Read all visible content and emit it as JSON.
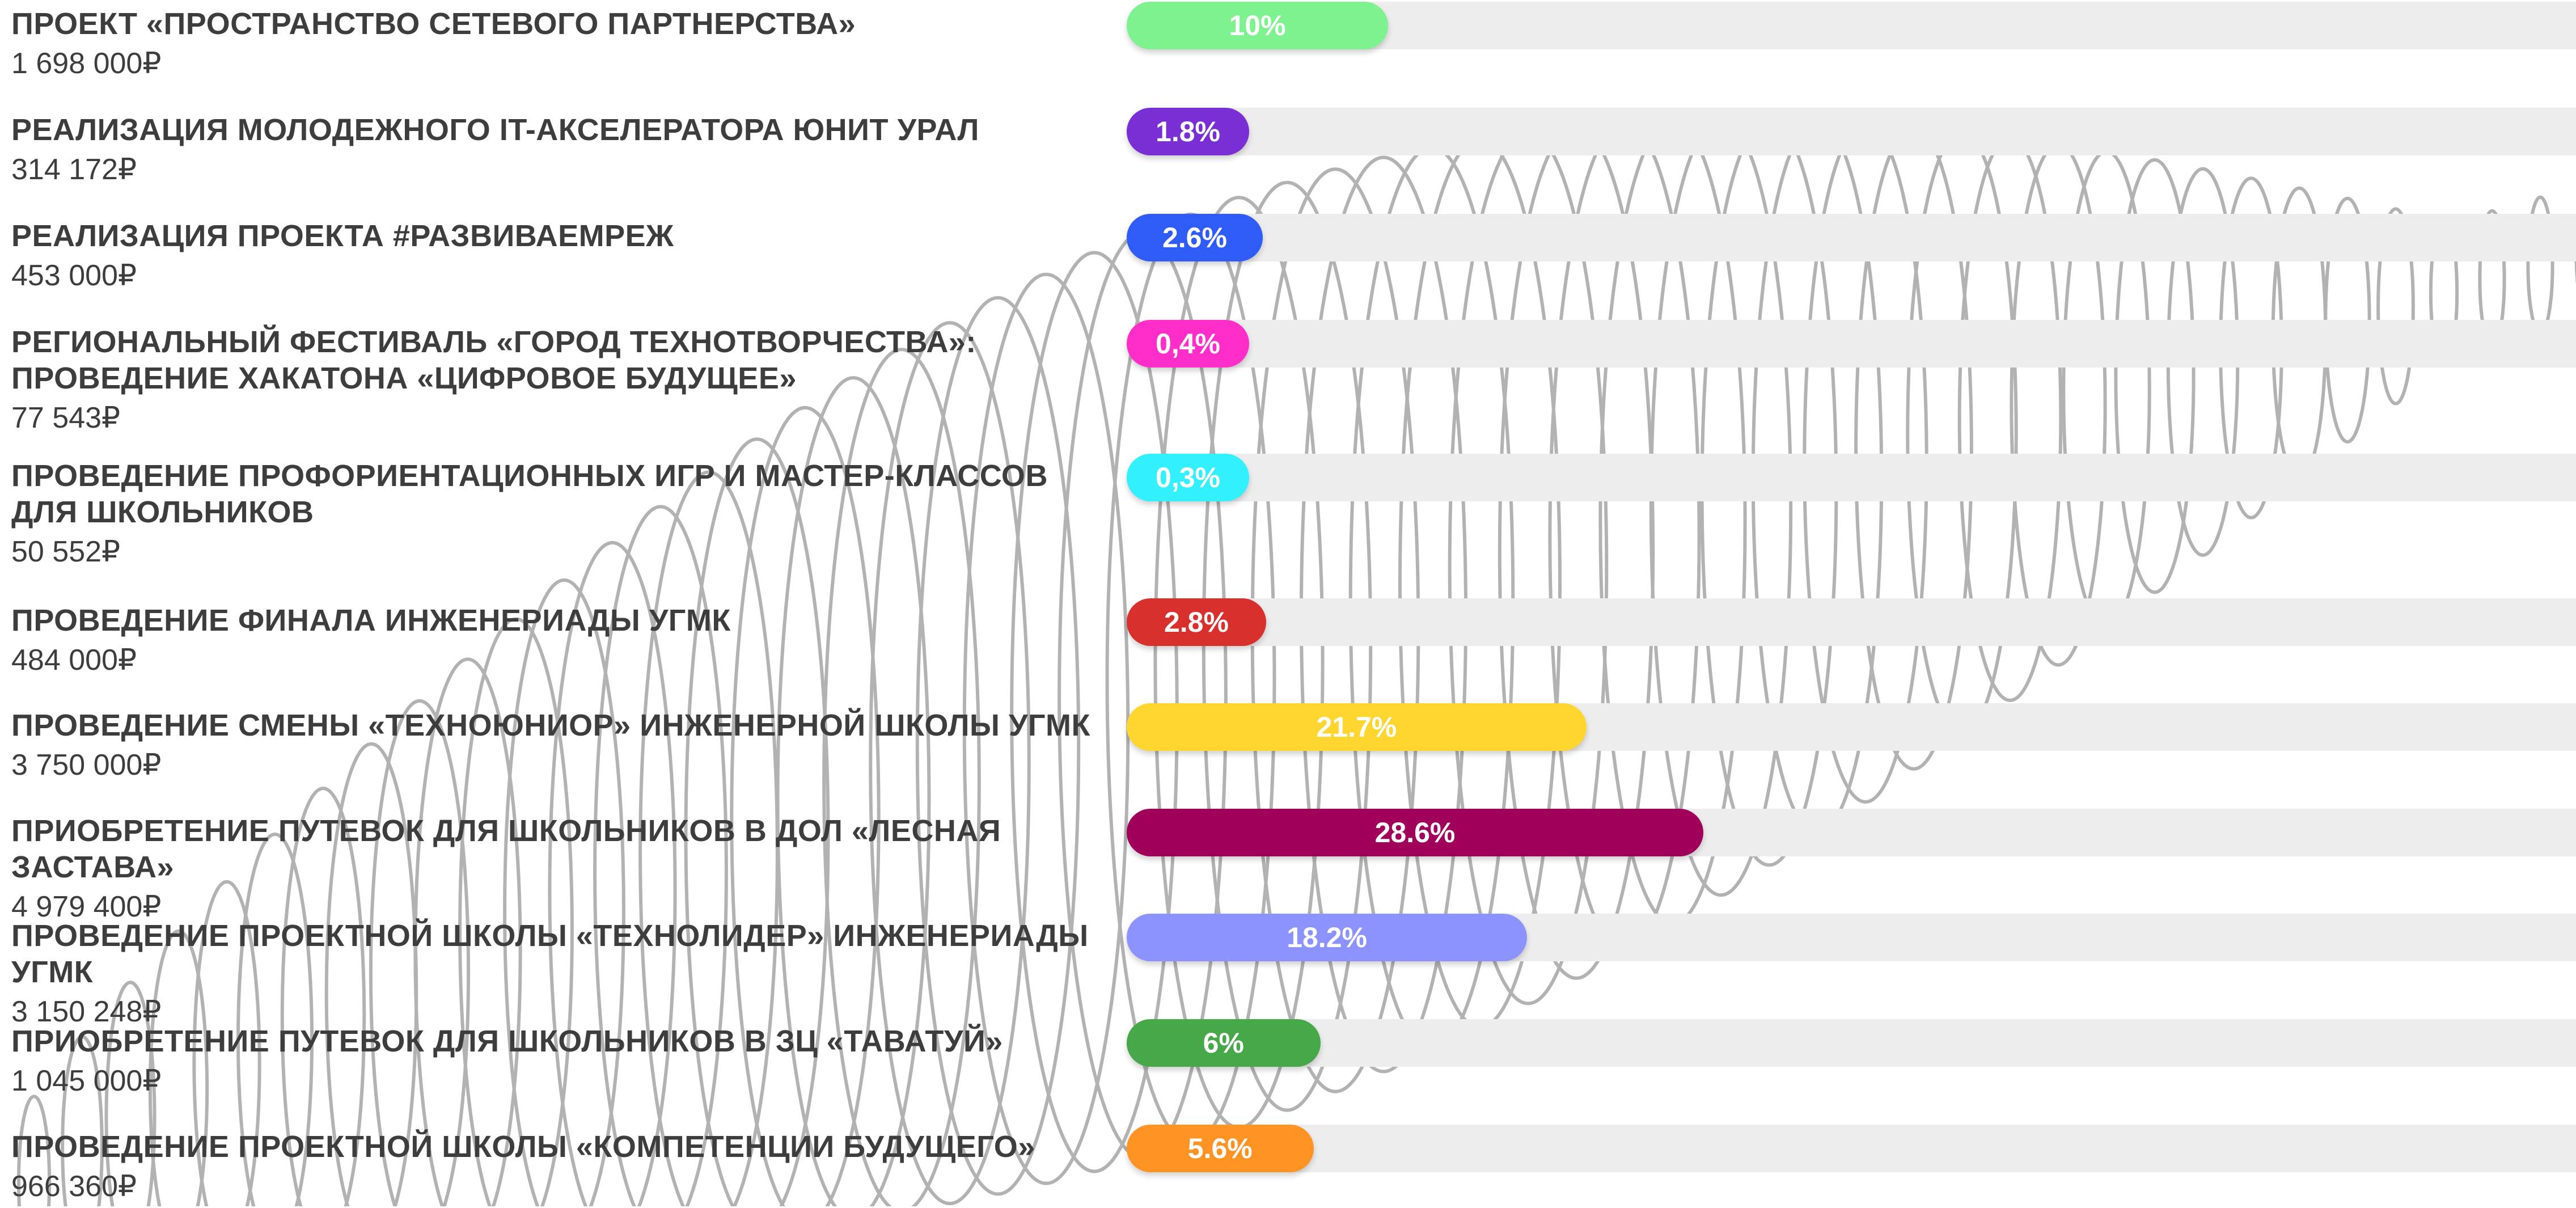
{
  "chart_data": {
    "type": "bar",
    "orientation": "horizontal",
    "rows": [
      {
        "title": "ПРОЕКТ «ПРОСТРАНСТВО СЕТЕВОГО ПАРТНЕРСТВА»",
        "amount": "1 698 000₽",
        "percent_label": "10%",
        "percent": 10,
        "color": "#7ef28e"
      },
      {
        "title": "РЕАЛИЗАЦИЯ МОЛОДЕЖНОГО IT-АКСЕЛЕРАТОРА ЮНИТ УРАЛ",
        "amount": "314 172₽",
        "percent_label": "1.8%",
        "percent": 1.8,
        "color": "#7a2fd4"
      },
      {
        "title": "РЕАЛИЗАЦИЯ ПРОЕКТА #РАЗВИВАЕМРЕЖ",
        "amount": "453 000₽",
        "percent_label": "2.6%",
        "percent": 2.6,
        "color": "#2f5cf6"
      },
      {
        "title": "РЕГИОНАЛЬНЫЙ ФЕСТИВАЛЬ «ГОРОД ТЕХНОТВОРЧЕСТВА»:\nПРОВЕДЕНИЕ ХАКАТОНА «ЦИФРОВОЕ БУДУЩЕЕ»",
        "amount": "77 543₽",
        "percent_label": "0,4%",
        "percent": 0.4,
        "color": "#ff2ec8"
      },
      {
        "title": "ПРОВЕДЕНИЕ ПРОФОРИЕНТАЦИОННЫХ ИГР И МАСТЕР-КЛАССОВ\nДЛЯ ШКОЛЬНИКОВ",
        "amount": "50 552₽",
        "percent_label": "0,3%",
        "percent": 0.3,
        "color": "#33f0ff"
      },
      {
        "title": "ПРОВЕДЕНИЕ ФИНАЛА ИНЖЕНЕРИАДЫ УГМК",
        "amount": "484 000₽",
        "percent_label": "2.8%",
        "percent": 2.8,
        "color": "#d8302c"
      },
      {
        "title": "ПРОВЕДЕНИЕ СМЕНЫ «ТЕХНОЮНИОР» ИНЖЕНЕРНОЙ ШКОЛЫ УГМК",
        "amount": "3 750 000₽",
        "percent_label": "21.7%",
        "percent": 21.7,
        "color": "#ffd630"
      },
      {
        "title": "ПРИОБРЕТЕНИЕ ПУТЕВОК ДЛЯ ШКОЛЬНИКОВ В ДОЛ «ЛЕСНАЯ ЗАСТАВА»",
        "amount": "4 979 400₽",
        "percent_label": "28.6%",
        "percent": 28.6,
        "color": "#a0005a"
      },
      {
        "title": "ПРОВЕДЕНИЕ ПРОЕКТНОЙ ШКОЛЫ «ТЕХНОЛИДЕР» ИНЖЕНЕРИАДЫ УГМК",
        "amount": "3 150 248₽",
        "percent_label": "18.2%",
        "percent": 18.2,
        "color": "#8c93ff"
      },
      {
        "title": "ПРИОБРЕТЕНИЕ ПУТЕВОК ДЛЯ ШКОЛЬНИКОВ В ЗЦ «ТАВАТУЙ»",
        "amount": "1 045 000₽",
        "percent_label": "6%",
        "percent": 6,
        "color": "#47a84a"
      },
      {
        "title": "ПРОВЕДЕНИЕ ПРОЕКТНОЙ ШКОЛЫ «КОМПЕТЕНЦИИ БУДУЩЕГО»",
        "amount": "966 360₽",
        "percent_label": "5.6%",
        "percent": 5.6,
        "color": "#ff9424"
      }
    ],
    "mesh_color": "#b2b2b2",
    "track_color": "#ededed"
  }
}
